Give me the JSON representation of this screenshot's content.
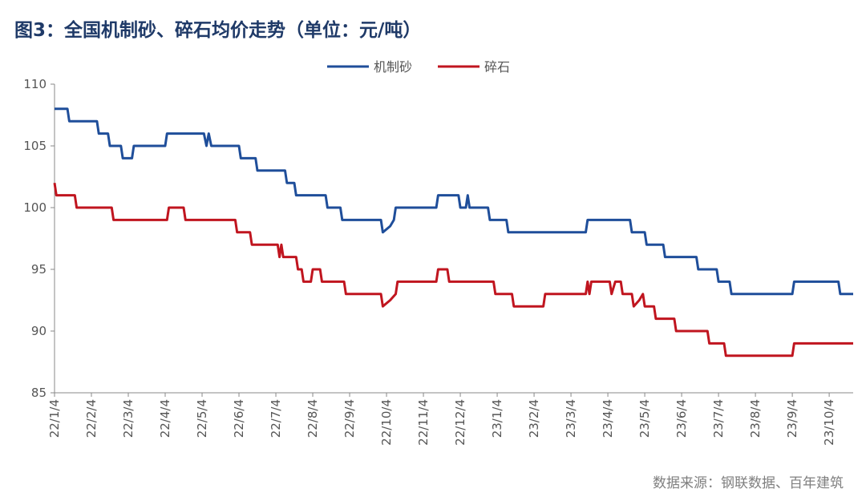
{
  "header": {
    "title": "图3：全国机制砂、碎石均价走势（单位：元/吨）"
  },
  "footer": {
    "source": "数据来源：钢联数据、百年建筑"
  },
  "colors": {
    "series1": "#1f4e9a",
    "series2": "#c0151f",
    "axis": "#888888"
  },
  "chart_data": {
    "type": "line",
    "title": "全国机制砂、碎石均价走势（单位：元/吨）",
    "xlabel": "",
    "ylabel": "",
    "ylim": [
      85,
      110
    ],
    "yticks": [
      85,
      90,
      95,
      100,
      105,
      110
    ],
    "legend_position": "top-center",
    "grid": false,
    "xticks": [
      "22/1/4",
      "22/2/4",
      "22/3/4",
      "22/4/4",
      "22/5/4",
      "22/6/4",
      "22/7/4",
      "22/8/4",
      "22/9/4",
      "22/10/4",
      "22/11/4",
      "22/12/4",
      "23/1/4",
      "23/2/4",
      "23/3/4",
      "23/4/4",
      "23/5/4",
      "23/6/4",
      "23/7/4",
      "23/8/4",
      "23/9/4",
      "23/10/4"
    ],
    "x_months_range": [
      0,
      21.65
    ],
    "series": [
      {
        "name": "机制砂",
        "color": "#1f4e9a",
        "points": [
          [
            0.0,
            108
          ],
          [
            0.35,
            108
          ],
          [
            0.4,
            107
          ],
          [
            1.15,
            107
          ],
          [
            1.2,
            106
          ],
          [
            1.45,
            106
          ],
          [
            1.5,
            105
          ],
          [
            1.8,
            105
          ],
          [
            1.85,
            104
          ],
          [
            2.1,
            104
          ],
          [
            2.15,
            105
          ],
          [
            3.0,
            105
          ],
          [
            3.05,
            106
          ],
          [
            4.05,
            106
          ],
          [
            4.12,
            105
          ],
          [
            4.18,
            106
          ],
          [
            4.25,
            105
          ],
          [
            5.0,
            105
          ],
          [
            5.05,
            104
          ],
          [
            5.45,
            104
          ],
          [
            5.5,
            103
          ],
          [
            6.25,
            103
          ],
          [
            6.3,
            102
          ],
          [
            6.5,
            102
          ],
          [
            6.55,
            101
          ],
          [
            7.35,
            101
          ],
          [
            7.4,
            100
          ],
          [
            7.75,
            100
          ],
          [
            7.8,
            99
          ],
          [
            8.85,
            99
          ],
          [
            8.9,
            98
          ],
          [
            9.1,
            98.5
          ],
          [
            9.2,
            99
          ],
          [
            9.25,
            100
          ],
          [
            10.35,
            100
          ],
          [
            10.4,
            101
          ],
          [
            10.95,
            101
          ],
          [
            11.0,
            100
          ],
          [
            11.15,
            100
          ],
          [
            11.2,
            101
          ],
          [
            11.25,
            100
          ],
          [
            11.75,
            100
          ],
          [
            11.8,
            99
          ],
          [
            12.25,
            99
          ],
          [
            12.3,
            98
          ],
          [
            14.4,
            98
          ],
          [
            14.45,
            99
          ],
          [
            15.6,
            99
          ],
          [
            15.65,
            98
          ],
          [
            16.0,
            98
          ],
          [
            16.05,
            97
          ],
          [
            16.5,
            97
          ],
          [
            16.55,
            96
          ],
          [
            17.4,
            96
          ],
          [
            17.45,
            95
          ],
          [
            17.95,
            95
          ],
          [
            18.0,
            94
          ],
          [
            18.3,
            94
          ],
          [
            18.35,
            93
          ],
          [
            20.0,
            93
          ],
          [
            20.05,
            94
          ],
          [
            21.25,
            94
          ],
          [
            21.3,
            93
          ],
          [
            21.65,
            93
          ]
        ]
      },
      {
        "name": "碎石",
        "color": "#c0151f",
        "points": [
          [
            0.0,
            102
          ],
          [
            0.05,
            101
          ],
          [
            0.55,
            101
          ],
          [
            0.6,
            100
          ],
          [
            1.55,
            100
          ],
          [
            1.6,
            99
          ],
          [
            3.05,
            99
          ],
          [
            3.1,
            100
          ],
          [
            3.5,
            100
          ],
          [
            3.55,
            99
          ],
          [
            4.9,
            99
          ],
          [
            4.95,
            98
          ],
          [
            5.3,
            98
          ],
          [
            5.35,
            97
          ],
          [
            6.05,
            97
          ],
          [
            6.1,
            96
          ],
          [
            6.15,
            97
          ],
          [
            6.2,
            96
          ],
          [
            6.55,
            96
          ],
          [
            6.6,
            95
          ],
          [
            6.7,
            95
          ],
          [
            6.75,
            94
          ],
          [
            6.95,
            94
          ],
          [
            7.0,
            95
          ],
          [
            7.2,
            95
          ],
          [
            7.25,
            94
          ],
          [
            7.85,
            94
          ],
          [
            7.9,
            93
          ],
          [
            8.85,
            93
          ],
          [
            8.9,
            92
          ],
          [
            9.1,
            92.5
          ],
          [
            9.25,
            93
          ],
          [
            9.3,
            94
          ],
          [
            10.35,
            94
          ],
          [
            10.4,
            95
          ],
          [
            10.65,
            95
          ],
          [
            10.7,
            94
          ],
          [
            11.9,
            94
          ],
          [
            11.95,
            93
          ],
          [
            12.4,
            93
          ],
          [
            12.45,
            92
          ],
          [
            13.25,
            92
          ],
          [
            13.3,
            93
          ],
          [
            14.4,
            93
          ],
          [
            14.45,
            94
          ],
          [
            14.5,
            93
          ],
          [
            14.55,
            94
          ],
          [
            15.05,
            94
          ],
          [
            15.1,
            93
          ],
          [
            15.2,
            94
          ],
          [
            15.35,
            94
          ],
          [
            15.4,
            93
          ],
          [
            15.65,
            93
          ],
          [
            15.7,
            92
          ],
          [
            15.85,
            92.5
          ],
          [
            15.95,
            93
          ],
          [
            16.0,
            92
          ],
          [
            16.25,
            92
          ],
          [
            16.3,
            91
          ],
          [
            16.8,
            91
          ],
          [
            16.85,
            90
          ],
          [
            17.7,
            90
          ],
          [
            17.75,
            89
          ],
          [
            18.15,
            89
          ],
          [
            18.2,
            88
          ],
          [
            20.0,
            88
          ],
          [
            20.05,
            89
          ],
          [
            21.65,
            89
          ]
        ]
      }
    ]
  }
}
